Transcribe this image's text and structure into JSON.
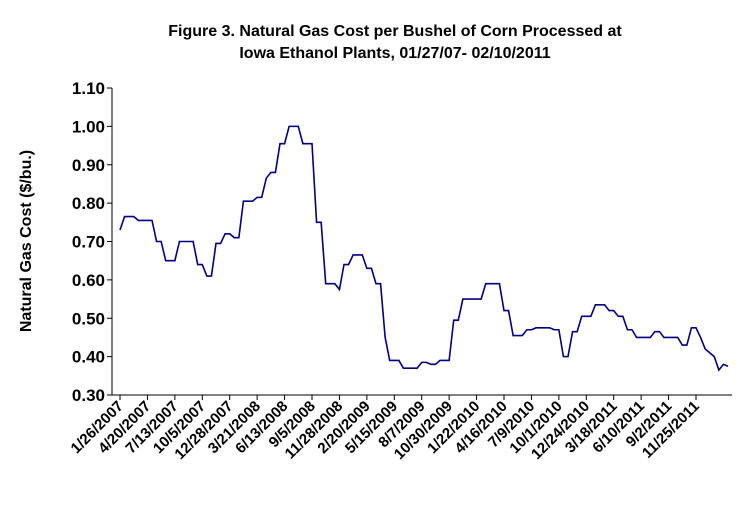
{
  "chart_data": {
    "type": "line",
    "title": [
      "Figure 3. Natural Gas Cost per Bushel of Corn Processed at",
      "Iowa Ethanol Plants, 01/27/07- 02/10/2011"
    ],
    "y_label": "Natural Gas Cost ($/bu.)",
    "color": "#000080",
    "categories": [
      "1/26/2007",
      null,
      null,
      null,
      null,
      null,
      "4/20/2007",
      null,
      null,
      null,
      null,
      null,
      "7/13/2007",
      null,
      null,
      null,
      null,
      null,
      "10/5/2007",
      null,
      null,
      null,
      null,
      null,
      "12/28/2007",
      null,
      null,
      null,
      null,
      null,
      "3/21/2008",
      null,
      null,
      null,
      null,
      null,
      "6/13/2008",
      null,
      null,
      null,
      null,
      null,
      "9/5/2008",
      null,
      null,
      null,
      null,
      null,
      "11/28/2008",
      null,
      null,
      null,
      null,
      null,
      "2/20/2009",
      null,
      null,
      null,
      null,
      null,
      "5/15/2009",
      null,
      null,
      null,
      null,
      null,
      "8/7/2009",
      null,
      null,
      null,
      null,
      null,
      "10/30/2009",
      null,
      null,
      null,
      null,
      null,
      "1/22/2010",
      null,
      null,
      null,
      null,
      null,
      "4/16/2010",
      null,
      null,
      null,
      null,
      null,
      "7/9/2010",
      null,
      null,
      null,
      null,
      null,
      "10/1/2010",
      null,
      null,
      null,
      null,
      null,
      "12/24/2010",
      null,
      null,
      null,
      null,
      null,
      "3/18/2011",
      null,
      null,
      null,
      null,
      null,
      "6/10/2011",
      null,
      null,
      null,
      null,
      null,
      "9/2/2011",
      null,
      null,
      null,
      null,
      null,
      "11/25/2011",
      null,
      null,
      null,
      null,
      null,
      null,
      null
    ],
    "values": [
      0.73,
      0.765,
      0.765,
      0.765,
      0.755,
      0.755,
      0.755,
      0.755,
      0.7,
      0.7,
      0.65,
      0.65,
      0.65,
      0.7,
      0.7,
      0.7,
      0.7,
      0.64,
      0.64,
      0.61,
      0.61,
      0.695,
      0.695,
      0.72,
      0.72,
      0.71,
      0.71,
      0.805,
      0.805,
      0.805,
      0.815,
      0.815,
      0.865,
      0.88,
      0.88,
      0.955,
      0.955,
      1.0,
      1.0,
      1.0,
      0.955,
      0.955,
      0.955,
      0.75,
      0.75,
      0.59,
      0.59,
      0.59,
      0.575,
      0.64,
      0.64,
      0.665,
      0.665,
      0.665,
      0.63,
      0.63,
      0.59,
      0.59,
      0.45,
      0.39,
      0.39,
      0.39,
      0.37,
      0.37,
      0.37,
      0.37,
      0.385,
      0.385,
      0.38,
      0.38,
      0.39,
      0.39,
      0.39,
      0.495,
      0.495,
      0.55,
      0.55,
      0.55,
      0.55,
      0.55,
      0.59,
      0.59,
      0.59,
      0.59,
      0.52,
      0.52,
      0.455,
      0.455,
      0.455,
      0.47,
      0.47,
      0.475,
      0.475,
      0.475,
      0.475,
      0.47,
      0.47,
      0.4,
      0.4,
      0.465,
      0.465,
      0.505,
      0.505,
      0.505,
      0.535,
      0.535,
      0.535,
      0.52,
      0.52,
      0.505,
      0.505,
      0.47,
      0.47,
      0.45,
      0.45,
      0.45,
      0.45,
      0.465,
      0.465,
      0.45,
      0.45,
      0.45,
      0.45,
      0.43,
      0.43,
      0.475,
      0.475,
      0.45,
      0.42,
      0.41,
      0.4,
      0.365,
      0.38,
      0.375
    ],
    "ylim": [
      0.3,
      1.1
    ],
    "yticks": [
      {
        "value": 0.3,
        "label": "0.30"
      },
      {
        "value": 0.4,
        "label": "0.40"
      },
      {
        "value": 0.5,
        "label": "0.50"
      },
      {
        "value": 0.6,
        "label": "0.60"
      },
      {
        "value": 0.7,
        "label": "0.70"
      },
      {
        "value": 0.8,
        "label": "0.80"
      },
      {
        "value": 0.9,
        "label": "0.90"
      },
      {
        "value": 1.0,
        "label": "1.00"
      },
      {
        "value": 1.1,
        "label": "1.10"
      }
    ],
    "grid": false
  }
}
